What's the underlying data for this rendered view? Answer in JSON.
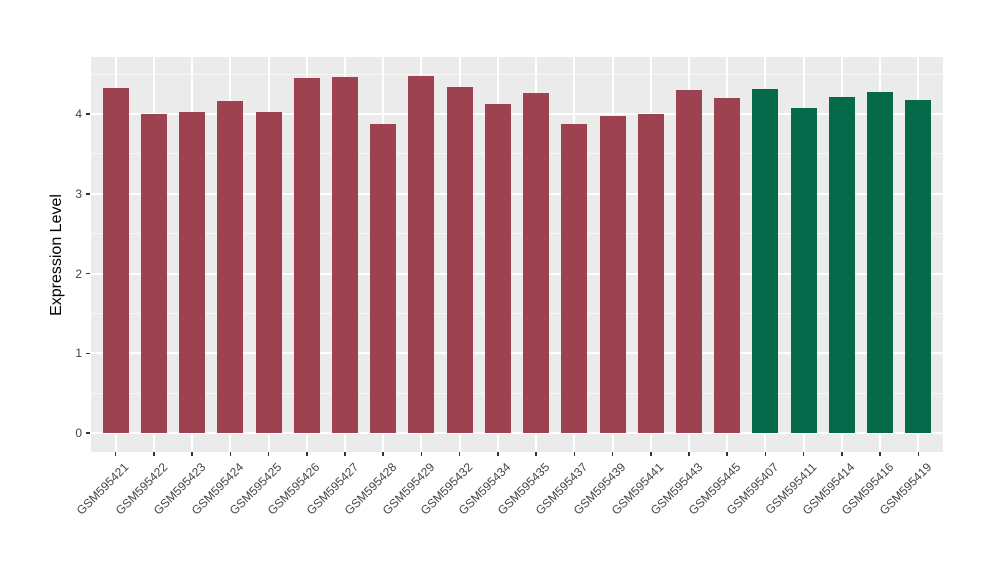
{
  "figure": {
    "panel_background": "#EBEBEB",
    "gridline_color": "#FFFFFF",
    "tick_color": "#333333",
    "tick_label_color": "#444444",
    "axis_title_color": "#000000",
    "group_colors": {
      "maroon": "#9C4250",
      "green": "#046A4A"
    }
  },
  "chart_data": {
    "type": "bar",
    "title": "",
    "xlabel": "",
    "ylabel": "Expression Level",
    "ylim": [
      0,
      4.72
    ],
    "y_ticks": [
      0,
      1,
      2,
      3,
      4
    ],
    "grid": "on",
    "legend": "none",
    "bars": [
      {
        "label": "GSM595421",
        "value": 4.32,
        "color": "#9C4250"
      },
      {
        "label": "GSM595422",
        "value": 4.0,
        "color": "#9C4250"
      },
      {
        "label": "GSM595423",
        "value": 4.02,
        "color": "#9C4250"
      },
      {
        "label": "GSM595424",
        "value": 4.16,
        "color": "#9C4250"
      },
      {
        "label": "GSM595425",
        "value": 4.02,
        "color": "#9C4250"
      },
      {
        "label": "GSM595426",
        "value": 4.45,
        "color": "#9C4250"
      },
      {
        "label": "GSM595427",
        "value": 4.47,
        "color": "#9C4250"
      },
      {
        "label": "GSM595428",
        "value": 3.88,
        "color": "#9C4250"
      },
      {
        "label": "GSM595429",
        "value": 4.48,
        "color": "#9C4250"
      },
      {
        "label": "GSM595432",
        "value": 4.34,
        "color": "#9C4250"
      },
      {
        "label": "GSM595434",
        "value": 4.12,
        "color": "#9C4250"
      },
      {
        "label": "GSM595435",
        "value": 4.26,
        "color": "#9C4250"
      },
      {
        "label": "GSM595437",
        "value": 3.87,
        "color": "#9C4250"
      },
      {
        "label": "GSM595439",
        "value": 3.98,
        "color": "#9C4250"
      },
      {
        "label": "GSM595441",
        "value": 4.0,
        "color": "#9C4250"
      },
      {
        "label": "GSM595443",
        "value": 4.3,
        "color": "#9C4250"
      },
      {
        "label": "GSM595445",
        "value": 4.2,
        "color": "#9C4250"
      },
      {
        "label": "GSM595407",
        "value": 4.31,
        "color": "#046A4A"
      },
      {
        "label": "GSM595411",
        "value": 4.08,
        "color": "#046A4A"
      },
      {
        "label": "GSM595414",
        "value": 4.21,
        "color": "#046A4A"
      },
      {
        "label": "GSM595416",
        "value": 4.27,
        "color": "#046A4A"
      },
      {
        "label": "GSM595419",
        "value": 4.18,
        "color": "#046A4A"
      }
    ]
  }
}
